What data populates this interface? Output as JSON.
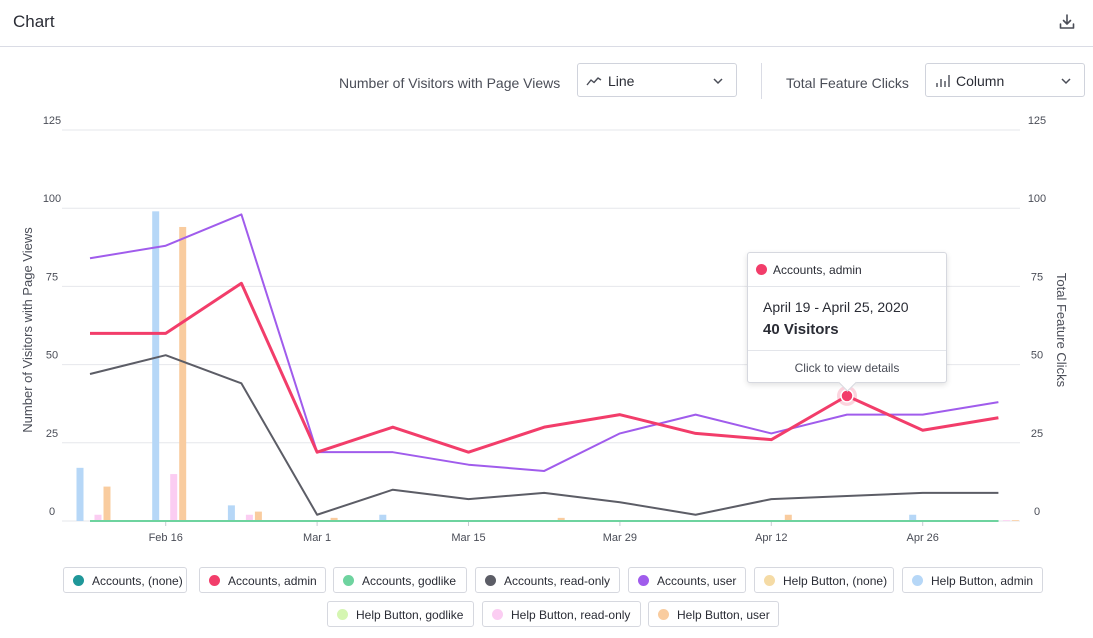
{
  "header": {
    "title": "Chart"
  },
  "controls": {
    "left_label": "Number of Visitors with Page Views",
    "left_select": "Line",
    "right_label": "Total Feature Clicks",
    "right_select": "Column"
  },
  "tooltip": {
    "series": "Accounts, admin",
    "range": "April 19 - April 25, 2020",
    "value": "40 Visitors",
    "link": "Click to view details",
    "color": "#f23d6a"
  },
  "legend": [
    {
      "label": "Accounts, (none)",
      "color": "#1f9799"
    },
    {
      "label": "Accounts, admin",
      "color": "#f23d6a"
    },
    {
      "label": "Accounts, godlike",
      "color": "#6ed39f"
    },
    {
      "label": "Accounts, read-only",
      "color": "#5c5d66"
    },
    {
      "label": "Accounts, user",
      "color": "#a05cec"
    },
    {
      "label": "Help Button, (none)",
      "color": "#f5dba5"
    },
    {
      "label": "Help Button, admin",
      "color": "#b6d7f7"
    },
    {
      "label": "Help Button, godlike",
      "color": "#d5f6b2"
    },
    {
      "label": "Help Button, read-only",
      "color": "#fbcdf2"
    },
    {
      "label": "Help Button, user",
      "color": "#f9cc9f"
    }
  ],
  "chart_data": {
    "type": "line",
    "x": [
      "Feb 9",
      "Feb 16",
      "Feb 23",
      "Mar 1",
      "Mar 8",
      "Mar 15",
      "Mar 22",
      "Mar 29",
      "Apr 5",
      "Apr 12",
      "Apr 19",
      "Apr 26",
      "May 3"
    ],
    "x_tick_labels": [
      "Feb 16",
      "Mar 1",
      "Mar 15",
      "Mar 29",
      "Apr 12",
      "Apr 26"
    ],
    "ylabel": "Number of Visitors with Page Views",
    "y2label": "Total Feature Clicks",
    "ylim": [
      0,
      125
    ],
    "y2lim": [
      0,
      125
    ],
    "y_ticks": [
      0,
      25,
      50,
      75,
      100,
      125
    ],
    "series": [
      {
        "name": "Accounts, user",
        "color": "#a05cec",
        "values": [
          84,
          88,
          98,
          22,
          22,
          18,
          16,
          28,
          34,
          28,
          34,
          34,
          38
        ]
      },
      {
        "name": "Accounts, read-only",
        "color": "#5c5d66",
        "values": [
          47,
          53,
          44,
          2,
          10,
          7,
          9,
          6,
          2,
          7,
          8,
          9,
          9
        ]
      },
      {
        "name": "Accounts, admin",
        "color": "#f23d6a",
        "values": [
          60,
          60,
          76,
          22,
          30,
          22,
          30,
          34,
          28,
          26,
          40,
          29,
          33
        ]
      },
      {
        "name": "Accounts, (none)",
        "color": "#1f9799",
        "values": [
          0,
          0,
          0,
          0,
          0,
          0,
          0,
          0,
          0,
          0,
          0,
          0,
          0
        ]
      },
      {
        "name": "Accounts, godlike",
        "color": "#6ed39f",
        "values": [
          0,
          0,
          0,
          0,
          0,
          0,
          0,
          0,
          0,
          0,
          0,
          0,
          0
        ]
      }
    ],
    "columns": [
      {
        "name": "Help Button, admin",
        "color": "#b6d7f7",
        "values": [
          17,
          99,
          5,
          0,
          2,
          0,
          0,
          0,
          0,
          0,
          0,
          2,
          0
        ]
      },
      {
        "name": "Help Button, read-only",
        "color": "#fbcdf2",
        "values": [
          2,
          15,
          2,
          0,
          0,
          0,
          0,
          0,
          0,
          0,
          0,
          0,
          0
        ]
      },
      {
        "name": "Help Button, user",
        "color": "#f9cc9f",
        "values": [
          11,
          94,
          3,
          1,
          0,
          0,
          1,
          0,
          0,
          2,
          0,
          0,
          0
        ]
      }
    ],
    "highlight": {
      "series": "Accounts, admin",
      "x": "Apr 19",
      "value": 40
    }
  }
}
